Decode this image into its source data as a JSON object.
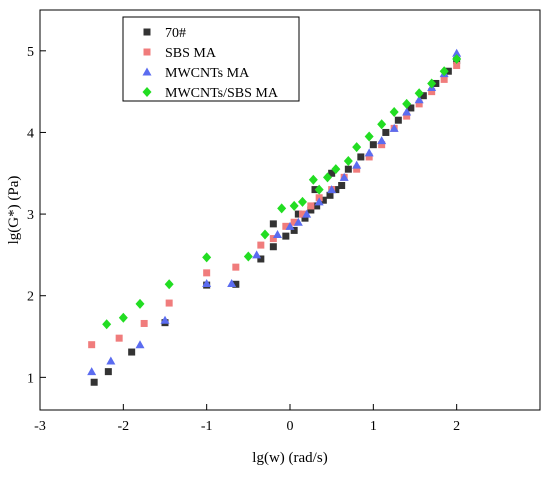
{
  "chart_data": {
    "type": "scatter",
    "xlabel": "lg(w)  (rad/s)",
    "ylabel": "lg(G*) (Pa)",
    "xlim": [
      -3,
      3
    ],
    "ylim": [
      0.6,
      5.5
    ],
    "xticks": [
      -3,
      -2,
      -1,
      0,
      1,
      2
    ],
    "yticks": [
      1,
      2,
      3,
      4,
      5
    ],
    "grid": false,
    "legend_position": "top-left",
    "series": [
      {
        "name": "70#",
        "color": "#333333",
        "marker": "square",
        "points": [
          [
            -2.35,
            0.94
          ],
          [
            -2.18,
            1.07
          ],
          [
            -1.9,
            1.31
          ],
          [
            -1.5,
            1.67
          ],
          [
            -1.0,
            2.13
          ],
          [
            -0.65,
            2.14
          ],
          [
            -0.35,
            2.45
          ],
          [
            -0.2,
            2.6
          ],
          [
            -0.2,
            2.88
          ],
          [
            -0.05,
            2.73
          ],
          [
            0.05,
            2.8
          ],
          [
            0.1,
            3.0
          ],
          [
            0.18,
            2.95
          ],
          [
            0.25,
            3.05
          ],
          [
            0.32,
            3.1
          ],
          [
            0.4,
            3.17
          ],
          [
            0.48,
            3.23
          ],
          [
            0.55,
            3.3
          ],
          [
            0.62,
            3.35
          ],
          [
            0.3,
            3.3
          ],
          [
            0.5,
            3.5
          ],
          [
            0.7,
            3.55
          ],
          [
            0.85,
            3.7
          ],
          [
            1.0,
            3.85
          ],
          [
            1.15,
            4.0
          ],
          [
            1.3,
            4.15
          ],
          [
            1.45,
            4.3
          ],
          [
            1.6,
            4.45
          ],
          [
            1.75,
            4.6
          ],
          [
            1.9,
            4.75
          ],
          [
            2.0,
            4.88
          ]
        ]
      },
      {
        "name": "SBS MA",
        "color": "#f07c7c",
        "marker": "square",
        "points": [
          [
            -2.38,
            1.4
          ],
          [
            -2.05,
            1.48
          ],
          [
            -1.75,
            1.66
          ],
          [
            -1.45,
            1.91
          ],
          [
            -1.0,
            2.28
          ],
          [
            -0.65,
            2.35
          ],
          [
            -0.35,
            2.62
          ],
          [
            -0.2,
            2.7
          ],
          [
            -0.05,
            2.85
          ],
          [
            0.05,
            2.9
          ],
          [
            0.15,
            3.0
          ],
          [
            0.25,
            3.1
          ],
          [
            0.35,
            3.2
          ],
          [
            0.5,
            3.3
          ],
          [
            0.65,
            3.45
          ],
          [
            0.8,
            3.55
          ],
          [
            0.95,
            3.7
          ],
          [
            1.1,
            3.85
          ],
          [
            1.25,
            4.05
          ],
          [
            1.4,
            4.2
          ],
          [
            1.55,
            4.35
          ],
          [
            1.7,
            4.5
          ],
          [
            1.85,
            4.65
          ],
          [
            2.0,
            4.82
          ]
        ]
      },
      {
        "name": "MWCNTs MA",
        "color": "#5b6cf0",
        "marker": "triangle",
        "points": [
          [
            -2.38,
            1.07
          ],
          [
            -2.15,
            1.2
          ],
          [
            -1.8,
            1.4
          ],
          [
            -1.5,
            1.7
          ],
          [
            -1.0,
            2.15
          ],
          [
            -0.7,
            2.15
          ],
          [
            -0.4,
            2.5
          ],
          [
            -0.15,
            2.75
          ],
          [
            0.0,
            2.85
          ],
          [
            0.1,
            2.9
          ],
          [
            0.2,
            3.0
          ],
          [
            0.35,
            3.15
          ],
          [
            0.5,
            3.3
          ],
          [
            0.65,
            3.45
          ],
          [
            0.8,
            3.6
          ],
          [
            0.95,
            3.75
          ],
          [
            1.1,
            3.9
          ],
          [
            1.25,
            4.05
          ],
          [
            1.4,
            4.25
          ],
          [
            1.55,
            4.4
          ],
          [
            1.7,
            4.55
          ],
          [
            1.85,
            4.72
          ],
          [
            2.0,
            4.97
          ]
        ]
      },
      {
        "name": "MWCNTs/SBS MA",
        "color": "#22dd22",
        "marker": "diamond",
        "points": [
          [
            -2.2,
            1.65
          ],
          [
            -2.0,
            1.73
          ],
          [
            -1.8,
            1.9
          ],
          [
            -1.45,
            2.14
          ],
          [
            -1.0,
            2.47
          ],
          [
            -0.5,
            2.48
          ],
          [
            -0.3,
            2.75
          ],
          [
            -0.1,
            3.07
          ],
          [
            0.05,
            3.1
          ],
          [
            0.15,
            3.15
          ],
          [
            0.28,
            3.42
          ],
          [
            0.35,
            3.3
          ],
          [
            0.45,
            3.45
          ],
          [
            0.55,
            3.55
          ],
          [
            0.7,
            3.65
          ],
          [
            0.8,
            3.82
          ],
          [
            0.95,
            3.95
          ],
          [
            1.1,
            4.1
          ],
          [
            1.25,
            4.25
          ],
          [
            1.4,
            4.35
          ],
          [
            1.55,
            4.48
          ],
          [
            1.7,
            4.6
          ],
          [
            1.85,
            4.75
          ],
          [
            2.0,
            4.9
          ]
        ]
      }
    ]
  }
}
